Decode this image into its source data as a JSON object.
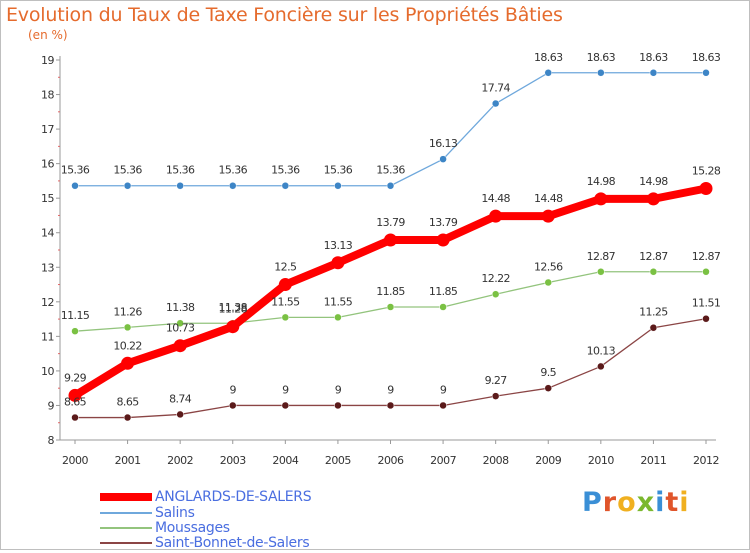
{
  "title": "Evolution du Taux de Taxe Foncière sur les Propriétés Bâties",
  "unit_label": "(en %)",
  "logo": {
    "text": [
      "P",
      "r",
      "o",
      "x",
      "i",
      "t",
      "i"
    ],
    "colors": [
      "#3a8fd6",
      "#e0552b",
      "#f0b020",
      "#7bb82e",
      "#3a8fd6",
      "#e0552b",
      "#f0b020"
    ]
  },
  "chart_data": {
    "type": "line",
    "title": "Evolution du Taux de Taxe Foncière sur les Propriétés Bâties",
    "ylabel": "(en %)",
    "xlabel": "",
    "x": [
      "2000",
      "2001",
      "2002",
      "2003",
      "2004",
      "2005",
      "2006",
      "2007",
      "2008",
      "2009",
      "2010",
      "2011",
      "2012"
    ],
    "ylim": [
      8,
      19
    ],
    "yticks": [
      "8",
      "9",
      "10",
      "11",
      "12",
      "13",
      "14",
      "15",
      "16",
      "17",
      "18",
      "19"
    ],
    "grid": false,
    "legend_position": "bottom-left",
    "series": [
      {
        "name": "ANGLARDS-DE-SALERS",
        "color": "#ff0000",
        "values": [
          9.29,
          10.22,
          10.73,
          11.28,
          12.5,
          13.13,
          13.79,
          13.79,
          14.48,
          14.48,
          14.98,
          14.98,
          15.28
        ],
        "labels": [
          "9.29",
          "10.22",
          "10.73",
          "11.28",
          "12.5",
          "13.13",
          "13.79",
          "13.79",
          "14.48",
          "14.48",
          "14.98",
          "14.98",
          "15.28"
        ],
        "label_offset": -14,
        "bold": true
      },
      {
        "name": "Salins",
        "color": "#6fa8dc",
        "marker": "#3d85c6",
        "values": [
          15.36,
          15.36,
          15.36,
          15.36,
          15.36,
          15.36,
          15.36,
          16.13,
          17.74,
          18.63,
          18.63,
          18.63,
          18.63
        ],
        "labels": [
          "15.36",
          "15.36",
          "15.36",
          "15.36",
          "15.36",
          "15.36",
          "15.36",
          "16.13",
          "17.74",
          "18.63",
          "18.63",
          "18.63",
          "18.63"
        ],
        "label_offset": -12
      },
      {
        "name": "Moussages",
        "color": "#93c47d",
        "marker": "#7ac143",
        "values": [
          11.15,
          11.26,
          11.38,
          11.38,
          11.55,
          11.55,
          11.85,
          11.85,
          12.22,
          12.56,
          12.87,
          12.87,
          12.87
        ],
        "labels": [
          "11.15",
          "11.26",
          "11.38",
          "11.38",
          "11.55",
          "11.55",
          "11.85",
          "11.85",
          "12.22",
          "12.56",
          "12.87",
          "12.87",
          "12.87"
        ],
        "label_offset": -12
      },
      {
        "name": "Saint-Bonnet-de-Salers",
        "color": "#8b4545",
        "marker": "#5b1a1a",
        "values": [
          8.65,
          8.65,
          8.74,
          9,
          9,
          9,
          9,
          9,
          9.27,
          9.5,
          10.13,
          11.25,
          11.51
        ],
        "labels": [
          "8.65",
          "8.65",
          "8.74",
          "9",
          "9",
          "9",
          "9",
          "9",
          "9.27",
          "9.5",
          "10.13",
          "11.25",
          "11.51"
        ],
        "label_offset": -12
      }
    ]
  }
}
